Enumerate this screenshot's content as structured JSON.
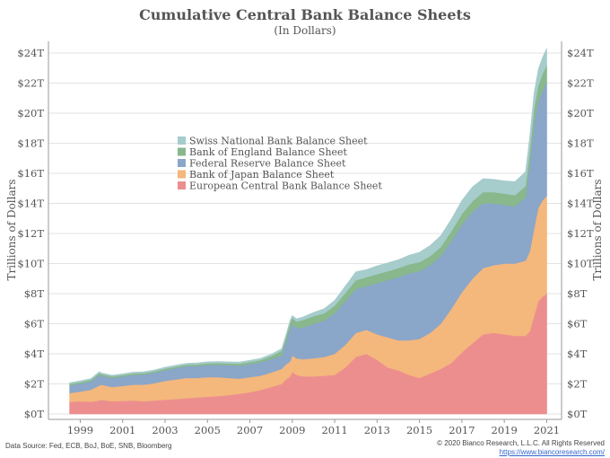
{
  "chart_data": {
    "type": "area",
    "stacked": true,
    "title": "Cumulative Central Bank Balance Sheets",
    "subtitle": "(In Dollars)",
    "ylabel_left": "Trillions of Dollars",
    "ylabel_right": "Trillions of Dollars",
    "ylim": [
      0,
      24
    ],
    "xlim": [
      1997.5,
      2021.7
    ],
    "x_ticks": [
      "1999",
      "2001",
      "2003",
      "2005",
      "2007",
      "2009",
      "2011",
      "2013",
      "2015",
      "2017",
      "2019",
      "2021"
    ],
    "y_ticks": [
      "$0T",
      "$2T",
      "$4T",
      "$6T",
      "$8T",
      "$10T",
      "$12T",
      "$14T",
      "$16T",
      "$18T",
      "$20T",
      "$22T",
      "$24T"
    ],
    "legend_position": "center-left",
    "x": [
      1998.5,
      1999.0,
      1999.5,
      1999.9,
      2000.0,
      2000.5,
      2001.0,
      2001.5,
      2002.0,
      2002.5,
      2003.0,
      2003.5,
      2004.0,
      2004.5,
      2005.0,
      2005.5,
      2006.0,
      2006.5,
      2007.0,
      2007.5,
      2008.0,
      2008.5,
      2008.7,
      2008.9,
      2009.0,
      2009.2,
      2009.5,
      2010.0,
      2010.5,
      2011.0,
      2011.5,
      2012.0,
      2012.5,
      2013.0,
      2013.5,
      2014.0,
      2014.5,
      2015.0,
      2015.5,
      2016.0,
      2016.5,
      2017.0,
      2017.5,
      2018.0,
      2018.5,
      2019.0,
      2019.5,
      2020.0,
      2020.2,
      2020.4,
      2020.6,
      2020.8,
      2021.0
    ],
    "series": [
      {
        "name": "European Central Bank Balance Sheet",
        "color": "#ec8e8e",
        "values": [
          0.8,
          0.85,
          0.82,
          0.9,
          0.95,
          0.85,
          0.87,
          0.9,
          0.85,
          0.9,
          0.95,
          1.0,
          1.05,
          1.1,
          1.15,
          1.2,
          1.25,
          1.35,
          1.45,
          1.6,
          1.8,
          2.0,
          2.3,
          2.5,
          2.8,
          2.6,
          2.5,
          2.5,
          2.55,
          2.6,
          3.1,
          3.8,
          4.0,
          3.6,
          3.1,
          2.9,
          2.6,
          2.4,
          2.7,
          3.0,
          3.4,
          4.1,
          4.7,
          5.3,
          5.4,
          5.3,
          5.2,
          5.2,
          5.5,
          6.5,
          7.5,
          7.8,
          8.0
        ]
      },
      {
        "name": "Bank of Japan Balance Sheet",
        "color": "#f4b77c",
        "values": [
          0.6,
          0.65,
          0.8,
          1.0,
          1.0,
          0.95,
          1.0,
          1.05,
          1.1,
          1.15,
          1.25,
          1.3,
          1.35,
          1.3,
          1.3,
          1.25,
          1.15,
          1.0,
          1.0,
          0.95,
          0.95,
          1.0,
          1.0,
          1.0,
          1.1,
          1.1,
          1.15,
          1.2,
          1.25,
          1.4,
          1.5,
          1.6,
          1.6,
          1.7,
          2.0,
          2.0,
          2.3,
          2.6,
          2.7,
          3.0,
          3.6,
          4.0,
          4.3,
          4.4,
          4.5,
          4.7,
          4.8,
          5.0,
          5.3,
          5.8,
          6.2,
          6.4,
          6.5
        ]
      },
      {
        "name": "Federal Reserve Balance Sheet",
        "color": "#8aa6c9",
        "values": [
          0.5,
          0.52,
          0.55,
          0.7,
          0.6,
          0.6,
          0.62,
          0.65,
          0.68,
          0.7,
          0.72,
          0.75,
          0.78,
          0.8,
          0.8,
          0.82,
          0.85,
          0.86,
          0.87,
          0.88,
          0.9,
          0.9,
          1.5,
          2.2,
          2.1,
          2.0,
          2.1,
          2.3,
          2.4,
          2.7,
          2.9,
          2.9,
          2.9,
          3.4,
          3.8,
          4.2,
          4.45,
          4.5,
          4.5,
          4.5,
          4.5,
          4.5,
          4.45,
          4.3,
          4.1,
          3.9,
          3.8,
          4.2,
          5.8,
          7.0,
          7.1,
          7.3,
          7.6
        ]
      },
      {
        "name": "Bank of England Balance Sheet",
        "color": "#88b88c",
        "values": [
          0.1,
          0.1,
          0.1,
          0.12,
          0.1,
          0.1,
          0.1,
          0.1,
          0.1,
          0.1,
          0.1,
          0.1,
          0.1,
          0.1,
          0.12,
          0.12,
          0.12,
          0.13,
          0.14,
          0.15,
          0.2,
          0.3,
          0.3,
          0.4,
          0.4,
          0.45,
          0.5,
          0.5,
          0.5,
          0.5,
          0.55,
          0.6,
          0.6,
          0.6,
          0.6,
          0.6,
          0.6,
          0.6,
          0.6,
          0.6,
          0.65,
          0.7,
          0.7,
          0.75,
          0.75,
          0.75,
          0.75,
          0.75,
          0.85,
          1.0,
          1.05,
          1.1,
          1.1
        ]
      },
      {
        "name": "Swiss National Bank Balance Sheet",
        "color": "#a6cccc",
        "values": [
          0.08,
          0.08,
          0.08,
          0.09,
          0.08,
          0.08,
          0.08,
          0.08,
          0.08,
          0.08,
          0.09,
          0.09,
          0.09,
          0.1,
          0.1,
          0.1,
          0.1,
          0.11,
          0.11,
          0.12,
          0.12,
          0.14,
          0.15,
          0.15,
          0.15,
          0.18,
          0.2,
          0.25,
          0.3,
          0.35,
          0.45,
          0.55,
          0.5,
          0.55,
          0.55,
          0.55,
          0.6,
          0.65,
          0.7,
          0.75,
          0.8,
          0.9,
          0.95,
          0.9,
          0.85,
          0.85,
          0.9,
          0.95,
          0.95,
          1.0,
          1.05,
          1.1,
          1.1
        ]
      }
    ]
  },
  "footer": {
    "source": "Data Source: Fed, ECB, BoJ, BoE, SNB, Bloomberg",
    "copyright": "© 2020 Bianco Research, L.L.C. All Rights Reserved",
    "url": "https://www.biancoresearch.com/"
  }
}
